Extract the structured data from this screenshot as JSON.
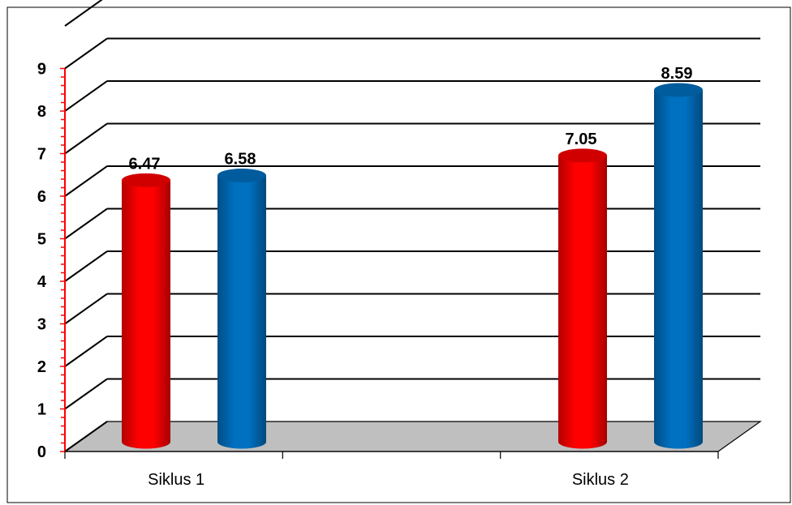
{
  "chart_data": {
    "type": "bar",
    "title": "",
    "xlabel": "",
    "ylabel": "",
    "categories": [
      "Siklus 1",
      "Siklus 2"
    ],
    "series": [
      {
        "values": [
          6.47,
          7.05
        ],
        "color": "#ff0000"
      },
      {
        "values": [
          6.58,
          8.59
        ],
        "color": "#0070c0"
      }
    ],
    "ylim": [
      0,
      9
    ],
    "yticks": [
      "0",
      "1",
      "2",
      "3",
      "4",
      "5",
      "6",
      "7",
      "8",
      "9"
    ],
    "data_labels": [
      [
        "6.47",
        "7.05"
      ],
      [
        "6.58",
        "8.59"
      ]
    ],
    "grid": true,
    "style": "3d-cylinder",
    "floor_color": "#bfbfbf",
    "axis_color": "#ff0000"
  }
}
